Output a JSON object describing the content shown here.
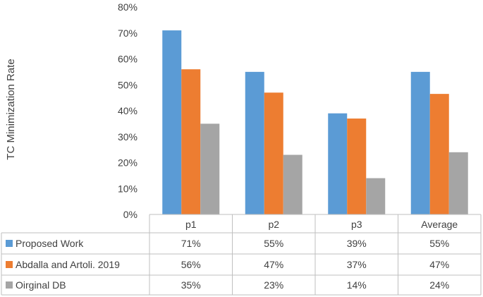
{
  "chart_data": {
    "type": "bar",
    "ylabel": "TC Minimization Rate",
    "categories": [
      "p1",
      "p2",
      "p3",
      "Average"
    ],
    "ylim": [
      0,
      80
    ],
    "y_ticks": [
      "0%",
      "10%",
      "20%",
      "30%",
      "40%",
      "50%",
      "60%",
      "70%",
      "80%"
    ],
    "grid": false,
    "legend": "data-table-left",
    "series": [
      {
        "name": "Proposed Work",
        "color": "#5B9BD5",
        "values": [
          71,
          55,
          39,
          55
        ],
        "table_labels": [
          "71%",
          "55%",
          "39%",
          "55%"
        ]
      },
      {
        "name": "Abdalla and Artoli. 2019",
        "color": "#ED7D31",
        "values": [
          56,
          47,
          37,
          46.5
        ],
        "table_labels": [
          "56%",
          "47%",
          "37%",
          "47%"
        ]
      },
      {
        "name": "Oirginal DB",
        "color": "#A5A5A5",
        "values": [
          35,
          23,
          14,
          24
        ],
        "table_labels": [
          "35%",
          "23%",
          "14%",
          "24%"
        ]
      }
    ]
  }
}
